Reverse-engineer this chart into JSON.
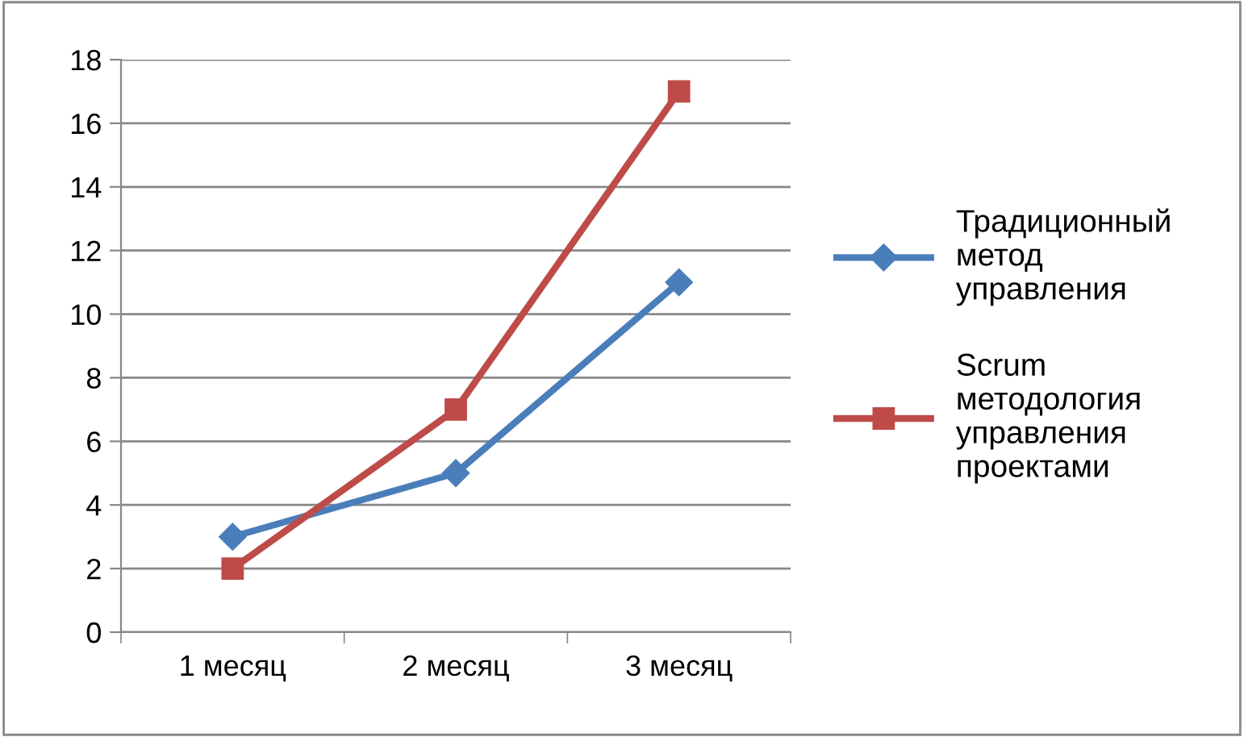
{
  "chart_data": {
    "type": "line",
    "categories": [
      "1 месяц",
      "2 месяц",
      "3 месяц"
    ],
    "series": [
      {
        "name": "Традиционный метод управления",
        "color": "#4a7ebb",
        "marker": "diamond",
        "values": [
          3,
          5,
          11
        ]
      },
      {
        "name": "Scrum методология управления проектами",
        "color": "#be4b48",
        "marker": "square",
        "values": [
          2,
          7,
          17
        ]
      }
    ],
    "ylim": [
      0,
      18
    ],
    "yticks": [
      0,
      2,
      4,
      6,
      8,
      10,
      12,
      14,
      16,
      18
    ],
    "grid": "y",
    "legend": "right",
    "line_style": "solid"
  }
}
